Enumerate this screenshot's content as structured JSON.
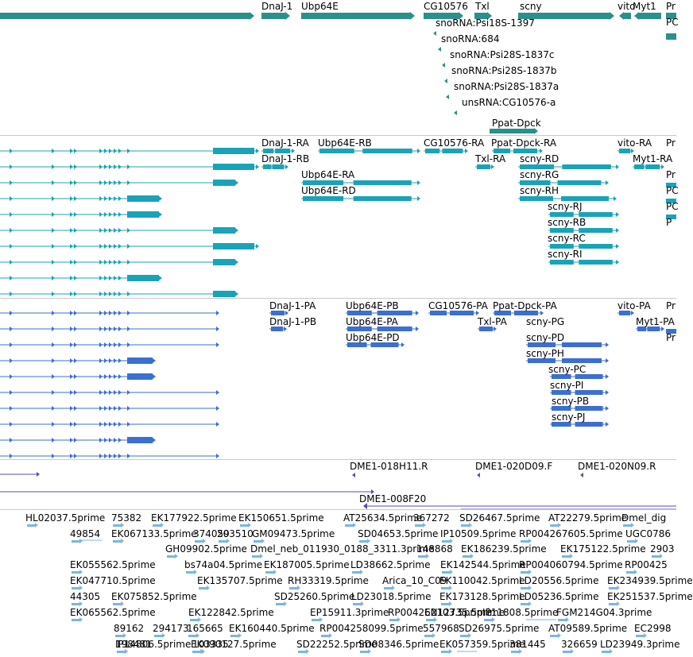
{
  "colors": {
    "gene": "#2b8f8b",
    "mrna": "#19a3b8",
    "protein": "#3b6fd1",
    "clone": "#5a4bb8",
    "est": "#79b5e6",
    "separator": "#c8c8c8"
  },
  "gene_track": {
    "labels": [
      "DnaJ-1",
      "Ubp64E",
      "CG10576",
      "Txl",
      "scny",
      "vito",
      "Myt1",
      "Pr",
      "PC",
      "snoRNA:Psi18S-1397",
      "snoRNA:684",
      "snoRNA:Psi28S-1837c",
      "snoRNA:Psi28S-1837b",
      "snoRNA:Psi28S-1837a",
      "unsRNA:CG10576-a",
      "Ppat-Dpck"
    ]
  },
  "mrna_track": {
    "labels": [
      "DnaJ-1-RA",
      "DnaJ-1-RB",
      "Ubp64E-RB",
      "Ubp64E-RA",
      "Ubp64E-RD",
      "CG10576-RA",
      "Ppat-Dpck-RA",
      "Txl-RA",
      "scny-RD",
      "scny-RG",
      "scny-RH",
      "scny-RJ",
      "scny-RB",
      "scny-RC",
      "scny-RI",
      "vito-RA",
      "Myt1-RA",
      "Pr",
      "Pr",
      "PC",
      "PC",
      "P"
    ]
  },
  "protein_track": {
    "labels": [
      "DnaJ-1-PA",
      "DnaJ-1-PB",
      "Ubp64E-PB",
      "Ubp64E-PA",
      "Ubp64E-PD",
      "CG10576-PA",
      "Ppat-Dpck-PA",
      "Txl-PA",
      "scny-PG",
      "scny-PD",
      "scny-PH",
      "scny-PC",
      "scny-PI",
      "scny-PB",
      "scny-PJ",
      "vito-PA",
      "Myt1-PA",
      "Pr",
      "Pr"
    ]
  },
  "clone_track": {
    "labels": [
      "DME1-018H11.R",
      "DME1-020D09.F",
      "DME1-020N09.R",
      "DME1-008F20"
    ]
  },
  "est_track": {
    "labels": [
      "HL02037.5prime",
      "75382",
      "EK177922.5prime",
      "EK150651.5prime",
      "AT25634.5prime",
      "367272",
      "SD26467.5prime",
      "AT22279.5prime",
      "Dmel_dig",
      "49854",
      "EK067133.5prime",
      "374059",
      "203510",
      "GM09473.5prime",
      "SD04653.5prime",
      "IP10509.5prime",
      "RP004267605.5prime",
      "UGC0786",
      "GH09902.5prime",
      "Dmel_neb_011930_0188_3311.3prime",
      "148868",
      "EK186239.5prime",
      "EK175122.5prime",
      "2903",
      "EK055562.5prime",
      "bs74a04.5prime",
      "EK187005.5prime",
      "LD38662.5prime",
      "EK142544.5prime",
      "RP004060794.5prime",
      "RP00425",
      "EK047710.5prime",
      "EK135707.5prime",
      "RH33319.5prime",
      "Arica_10_C09",
      "EK110042.5prime",
      "LD20556.5prime",
      "EK234939.5prime",
      "44305",
      "EK075852.5prime",
      "SD25260.5prime",
      "LD23018.5prime",
      "EK173128.5prime",
      "LD05236.5prime",
      "EK251537.5prime",
      "EK065562.5prime",
      "EK122842.5prime",
      "EP15911.3prime",
      "RP004262103.5prime",
      "EN12735.5prime",
      "IP11808.5prime",
      "FGM214G04.3prime",
      "89162",
      "294173",
      "165665",
      "EK160440.5prime",
      "RP004258099.5prime",
      "557968",
      "SD26975.5prime",
      "AT09589.5prime",
      "EC2998",
      "198481",
      "103335",
      "SD22252.5prime",
      "SD08346.5prime",
      "EK057359.5prime",
      "381445",
      "326659",
      "LD23949.3prime",
      "IP14806.5prime",
      "EK090127.5prime"
    ]
  }
}
